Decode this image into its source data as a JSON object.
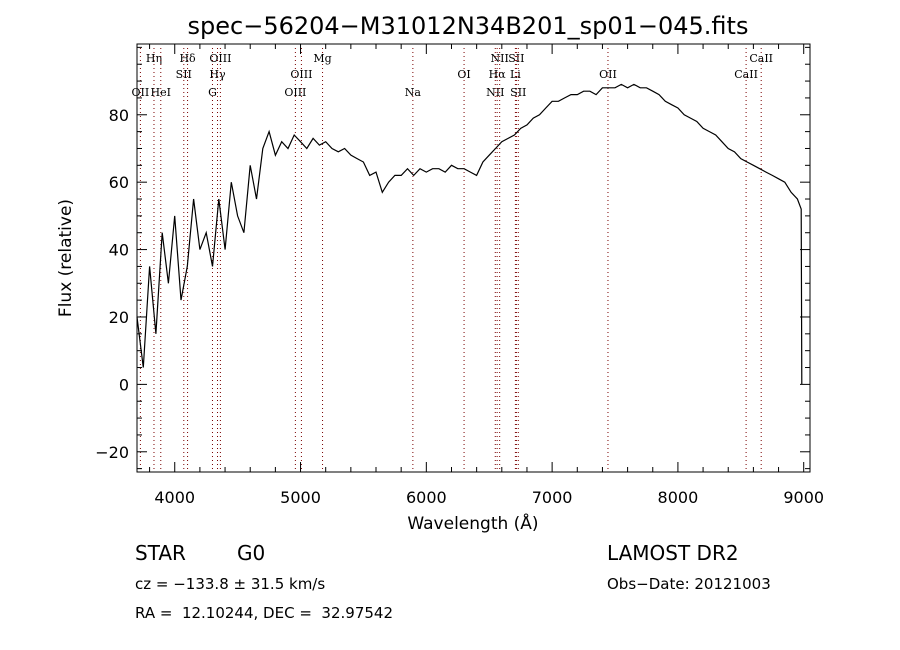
{
  "chart_data": {
    "type": "line",
    "title": "spec−56204−M31012N34B201_sp01−045.fits",
    "xlabel": "Wavelength (Å)",
    "ylabel": "Flux (relative)",
    "xlim": [
      3700,
      9050
    ],
    "ylim": [
      -26,
      101
    ],
    "xticks": [
      4000,
      5000,
      6000,
      7000,
      8000,
      9000
    ],
    "xtick_labels": [
      "4000",
      "5000",
      "6000",
      "7000",
      "8000",
      "9000"
    ],
    "yticks": [
      -20,
      0,
      20,
      40,
      60,
      80
    ],
    "ytick_labels": [
      "−20",
      "0",
      "20",
      "40",
      "60",
      "80"
    ],
    "grid": false,
    "series": [
      {
        "x": [
          3700,
          3750,
          3800,
          3850,
          3900,
          3950,
          4000,
          4050,
          4100,
          4150,
          4200,
          4250,
          4300,
          4350,
          4400,
          4450,
          4500,
          4550,
          4600,
          4650,
          4700,
          4750,
          4800,
          4850,
          4900,
          4950,
          5000,
          5050,
          5100,
          5150,
          5200,
          5250,
          5300,
          5350,
          5400,
          5450,
          5500,
          5550,
          5600,
          5650,
          5700,
          5750,
          5800,
          5850,
          5900,
          5950,
          6000,
          6050,
          6100,
          6150,
          6200,
          6250,
          6300,
          6350,
          6400,
          6450,
          6500,
          6550,
          6600,
          6650,
          6700,
          6750,
          6800,
          6850,
          6900,
          6950,
          7000,
          7050,
          7100,
          7150,
          7200,
          7250,
          7300,
          7350,
          7400,
          7450,
          7500,
          7550,
          7600,
          7650,
          7700,
          7750,
          7800,
          7850,
          7900,
          7950,
          8000,
          8050,
          8100,
          8150,
          8200,
          8250,
          8300,
          8350,
          8400,
          8450,
          8500,
          8550,
          8600,
          8650,
          8700,
          8750,
          8800,
          8850,
          8900,
          8950,
          8980,
          8985
        ],
        "y": [
          20,
          5,
          35,
          15,
          45,
          30,
          50,
          25,
          35,
          55,
          40,
          45,
          35,
          55,
          40,
          60,
          50,
          45,
          65,
          55,
          70,
          75,
          68,
          72,
          70,
          74,
          72,
          70,
          73,
          71,
          72,
          70,
          69,
          70,
          68,
          67,
          66,
          62,
          63,
          57,
          60,
          62,
          62,
          64,
          62,
          64,
          63,
          64,
          64,
          63,
          65,
          64,
          64,
          63,
          62,
          66,
          68,
          70,
          72,
          73,
          74,
          76,
          77,
          79,
          80,
          82,
          84,
          84,
          85,
          86,
          86,
          87,
          87,
          86,
          88,
          88,
          88,
          89,
          88,
          89,
          88,
          88,
          87,
          86,
          84,
          83,
          82,
          80,
          79,
          78,
          76,
          75,
          74,
          72,
          70,
          69,
          67,
          66,
          65,
          64,
          63,
          62,
          61,
          60,
          57,
          55,
          52,
          0
        ]
      }
    ],
    "line_labels": [
      {
        "wavelength": 3727,
        "label": "OII",
        "row": 3
      },
      {
        "wavelength": 3835,
        "label": "Hη",
        "row": 1
      },
      {
        "wavelength": 3889,
        "label": "HeI",
        "row": 3
      },
      {
        "wavelength": 4072,
        "label": "SII",
        "row": 2
      },
      {
        "wavelength": 4102,
        "label": "Hδ",
        "row": 1
      },
      {
        "wavelength": 4300,
        "label": "G",
        "row": 3
      },
      {
        "wavelength": 4340,
        "label": "Hγ",
        "row": 2
      },
      {
        "wavelength": 4363,
        "label": "OIII",
        "row": 1
      },
      {
        "wavelength": 4959,
        "label": "OIII",
        "row": 3
      },
      {
        "wavelength": 5007,
        "label": "OIII",
        "row": 2
      },
      {
        "wavelength": 5175,
        "label": "Mg",
        "row": 1
      },
      {
        "wavelength": 5893,
        "label": "Na",
        "row": 3
      },
      {
        "wavelength": 6300,
        "label": "OI",
        "row": 2
      },
      {
        "wavelength": 6548,
        "label": "NII",
        "row": 3
      },
      {
        "wavelength": 6563,
        "label": "Hα",
        "row": 2
      },
      {
        "wavelength": 6583,
        "label": "NII",
        "row": 1
      },
      {
        "wavelength": 6708,
        "label": "Li",
        "row": 2
      },
      {
        "wavelength": 6716,
        "label": "SII",
        "row": 1
      },
      {
        "wavelength": 6731,
        "label": "SII",
        "row": 3
      },
      {
        "wavelength": 7444,
        "label": "OII",
        "row": 2
      },
      {
        "wavelength": 8542,
        "label": "CaII",
        "row": 2
      },
      {
        "wavelength": 8662,
        "label": "CaII",
        "row": 1
      }
    ]
  },
  "info": {
    "class": "STAR",
    "subclass": "G0",
    "survey": "LAMOST DR2",
    "redshift": "cz = −133.8 ± 31.5 km/s",
    "obsdate": "Obs−Date: 20121003",
    "coords": "RA =  12.10244, DEC =  32.97542"
  }
}
